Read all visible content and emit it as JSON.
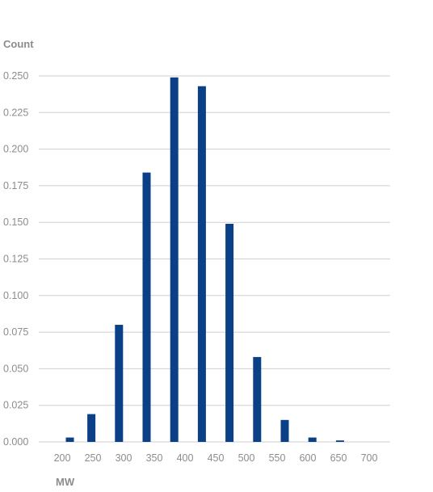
{
  "chart_data": {
    "type": "bar",
    "title": "",
    "xlabel": "MW",
    "ylabel": "Count",
    "x": [
      212.5,
      247.5,
      292.5,
      337.5,
      382.5,
      427.5,
      472.5,
      517.5,
      562.5,
      607.5,
      652.5
    ],
    "values": [
      0.003,
      0.019,
      0.08,
      0.184,
      0.249,
      0.243,
      0.149,
      0.058,
      0.015,
      0.003,
      0.001
    ],
    "xticks": [
      "200",
      "250",
      "300",
      "350",
      "400",
      "450",
      "500",
      "550",
      "600",
      "650",
      "700"
    ],
    "yticks": [
      "0.000",
      "0.025",
      "0.050",
      "0.075",
      "0.100",
      "0.125",
      "0.150",
      "0.175",
      "0.200",
      "0.225",
      "0.250"
    ],
    "ylim": [
      0,
      0.25
    ],
    "xlim": [
      200,
      700
    ],
    "grid": true,
    "legend": "none",
    "bar_color": "#0b3f86",
    "grid_color": "#cfcfcf",
    "text_color": "#8c8c8c"
  }
}
